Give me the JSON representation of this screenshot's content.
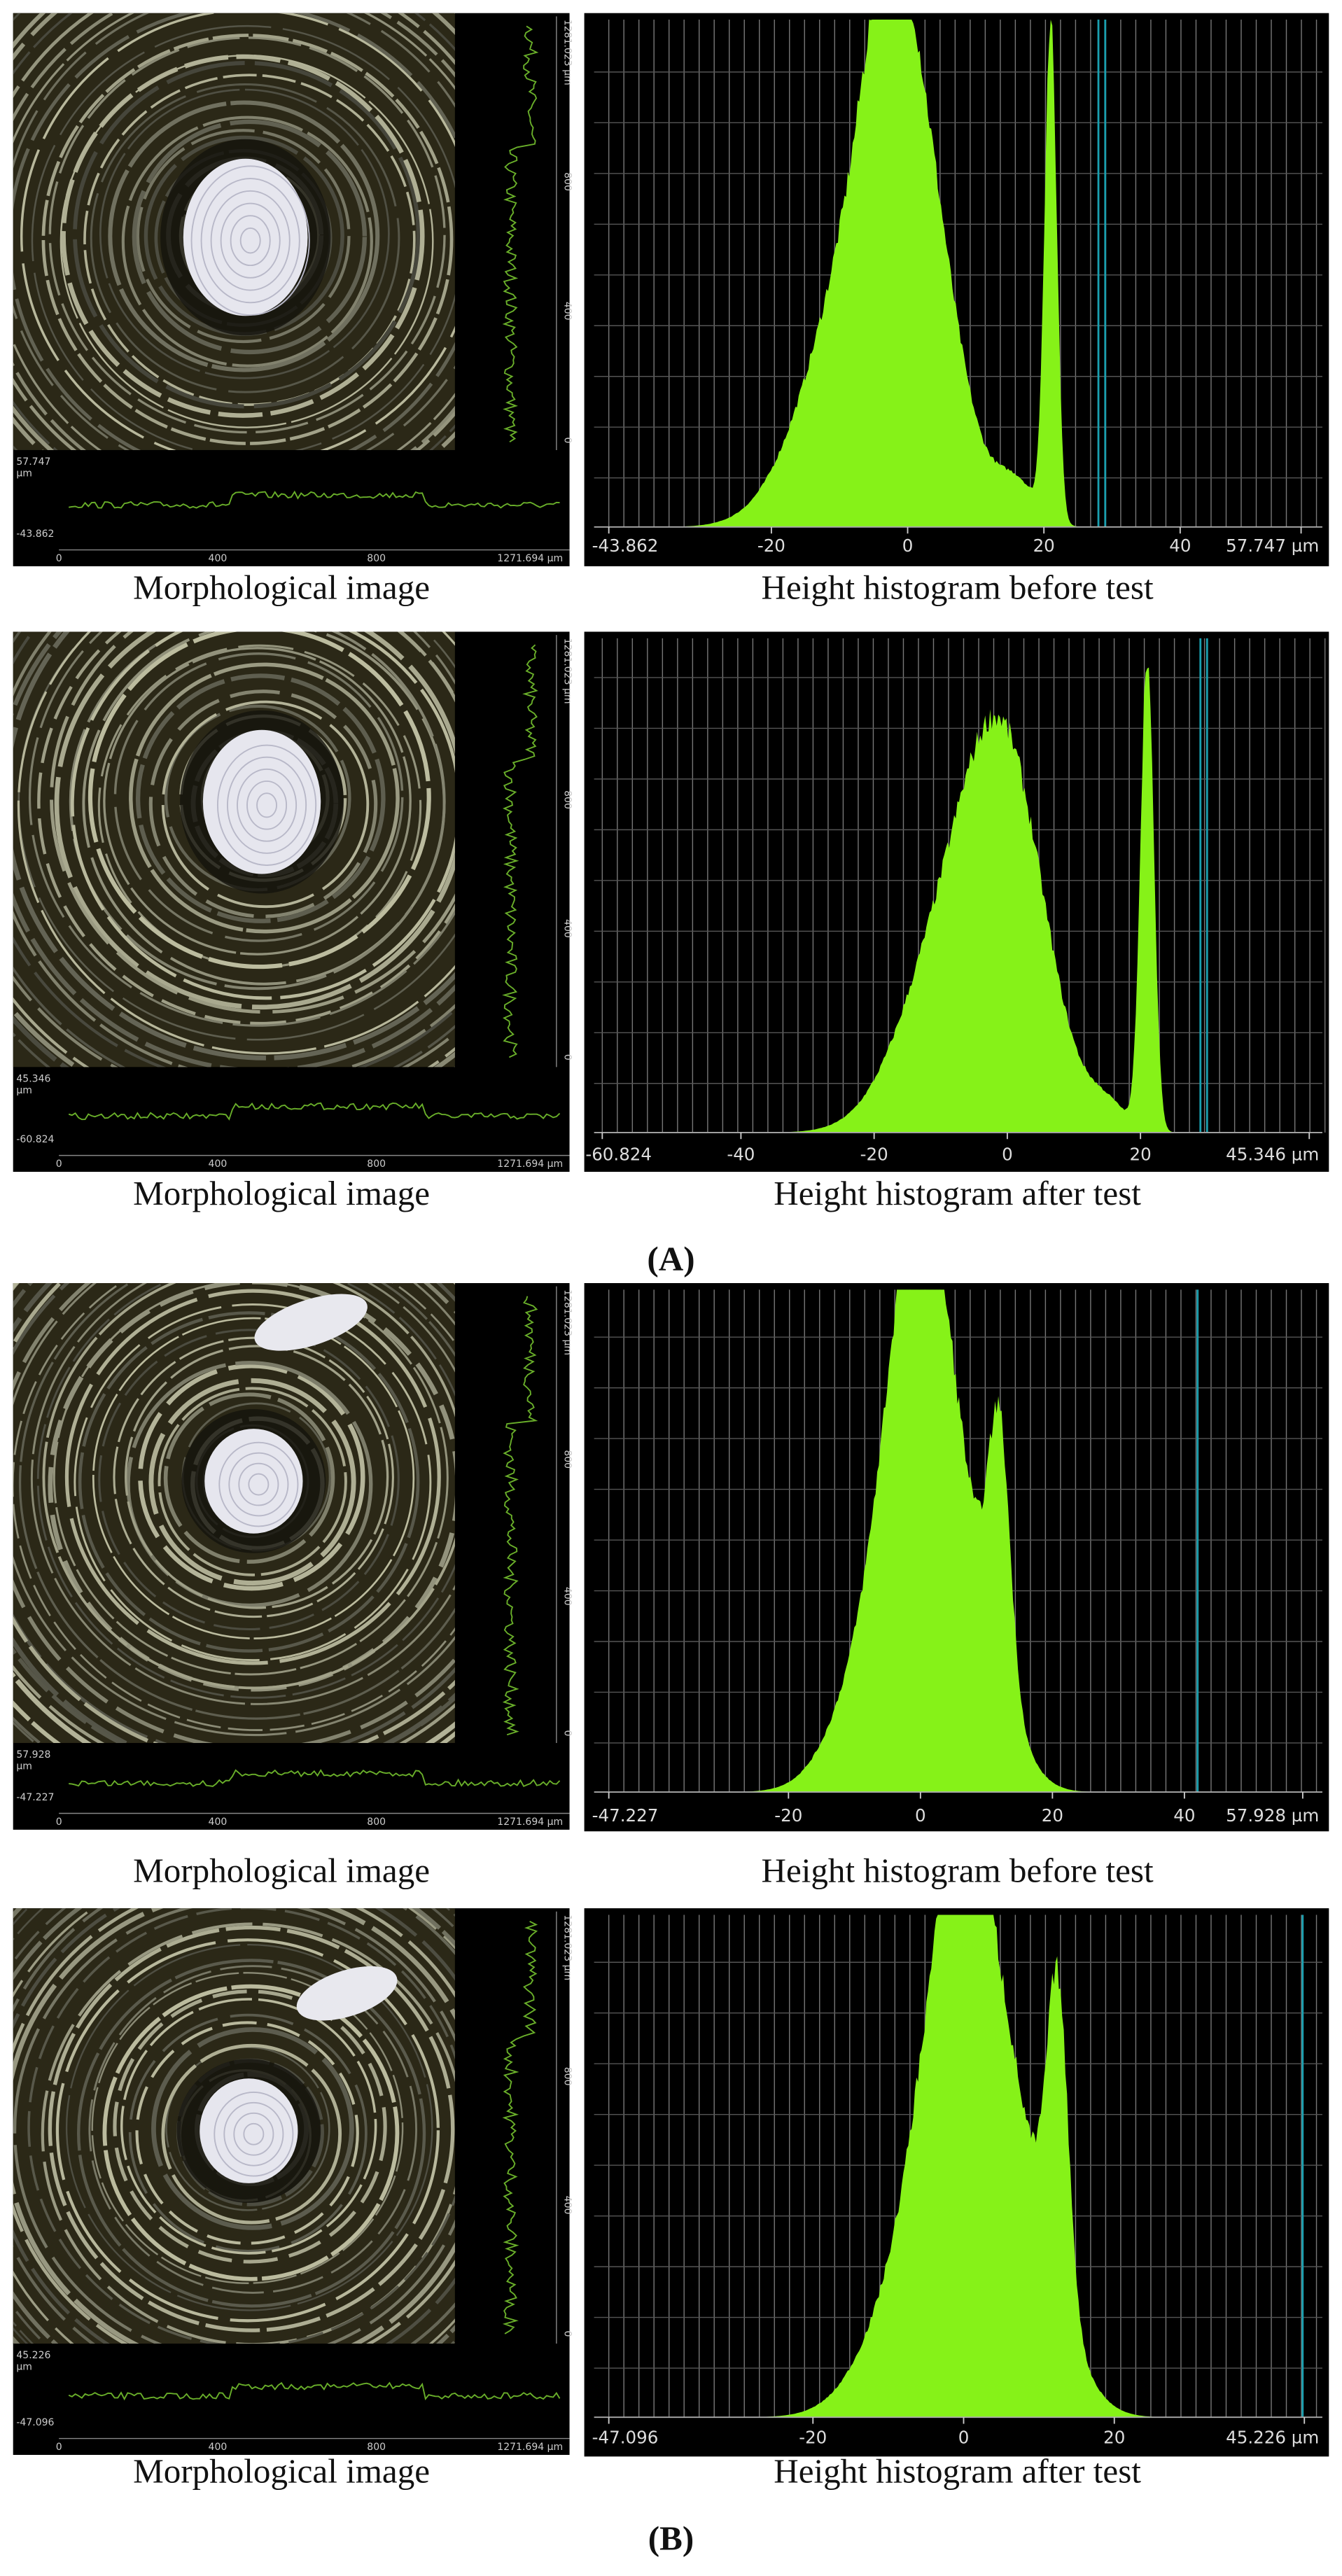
{
  "panels": [
    {
      "morph": {
        "caption": "Morphological image",
        "left_labels": [
          "57.747",
          "µm",
          "-43.862"
        ],
        "bottom_labels": [
          "0",
          "400",
          "800",
          "1271.694 µm"
        ],
        "right_labels": [
          "0",
          "400",
          "800",
          "1281.023 µm"
        ]
      },
      "histogram": {
        "caption": "Height histogram before test",
        "xticks": [
          -43.862,
          -20,
          0,
          20,
          40,
          {
            "value": 57.747,
            "label": "57.747 µm"
          }
        ]
      }
    },
    {
      "morph": {
        "caption": "Morphological image",
        "left_labels": [
          "45.346",
          "µm",
          "-60.824"
        ],
        "bottom_labels": [
          "0",
          "400",
          "800",
          "1271.694 µm"
        ],
        "right_labels": [
          "0",
          "400",
          "800",
          "1281.023 µm"
        ]
      },
      "histogram": {
        "caption": "Height histogram after test",
        "xticks": [
          -60.824,
          -40,
          -20,
          0,
          20,
          {
            "value": 45.346,
            "label": "45.346 µm"
          }
        ]
      }
    },
    {
      "morph": {
        "caption": "Morphological image",
        "left_labels": [
          "57.928",
          "µm",
          "-47.227"
        ],
        "bottom_labels": [
          "0",
          "400",
          "800",
          "1271.694 µm"
        ],
        "right_labels": [
          "0",
          "400",
          "800",
          "1281.023 µm"
        ]
      },
      "histogram": {
        "caption": "Height histogram before test",
        "xticks": [
          -47.227,
          -20,
          0,
          20,
          40,
          {
            "value": 57.928,
            "label": "57.928 µm"
          }
        ]
      }
    },
    {
      "morph": {
        "caption": "Morphological image",
        "left_labels": [
          "45.226",
          "µm",
          "-47.096"
        ],
        "bottom_labels": [
          "0",
          "400",
          "800",
          "1271.694 µm"
        ],
        "right_labels": [
          "0",
          "400",
          "800",
          "1281.023 µm"
        ]
      },
      "histogram": {
        "caption": "Height histogram after test",
        "xticks": [
          -47.096,
          -20,
          0,
          20,
          {
            "value": 45.226,
            "label": "45.226 µm"
          }
        ]
      }
    }
  ],
  "group_labels": [
    "(A)",
    "(B)"
  ]
}
